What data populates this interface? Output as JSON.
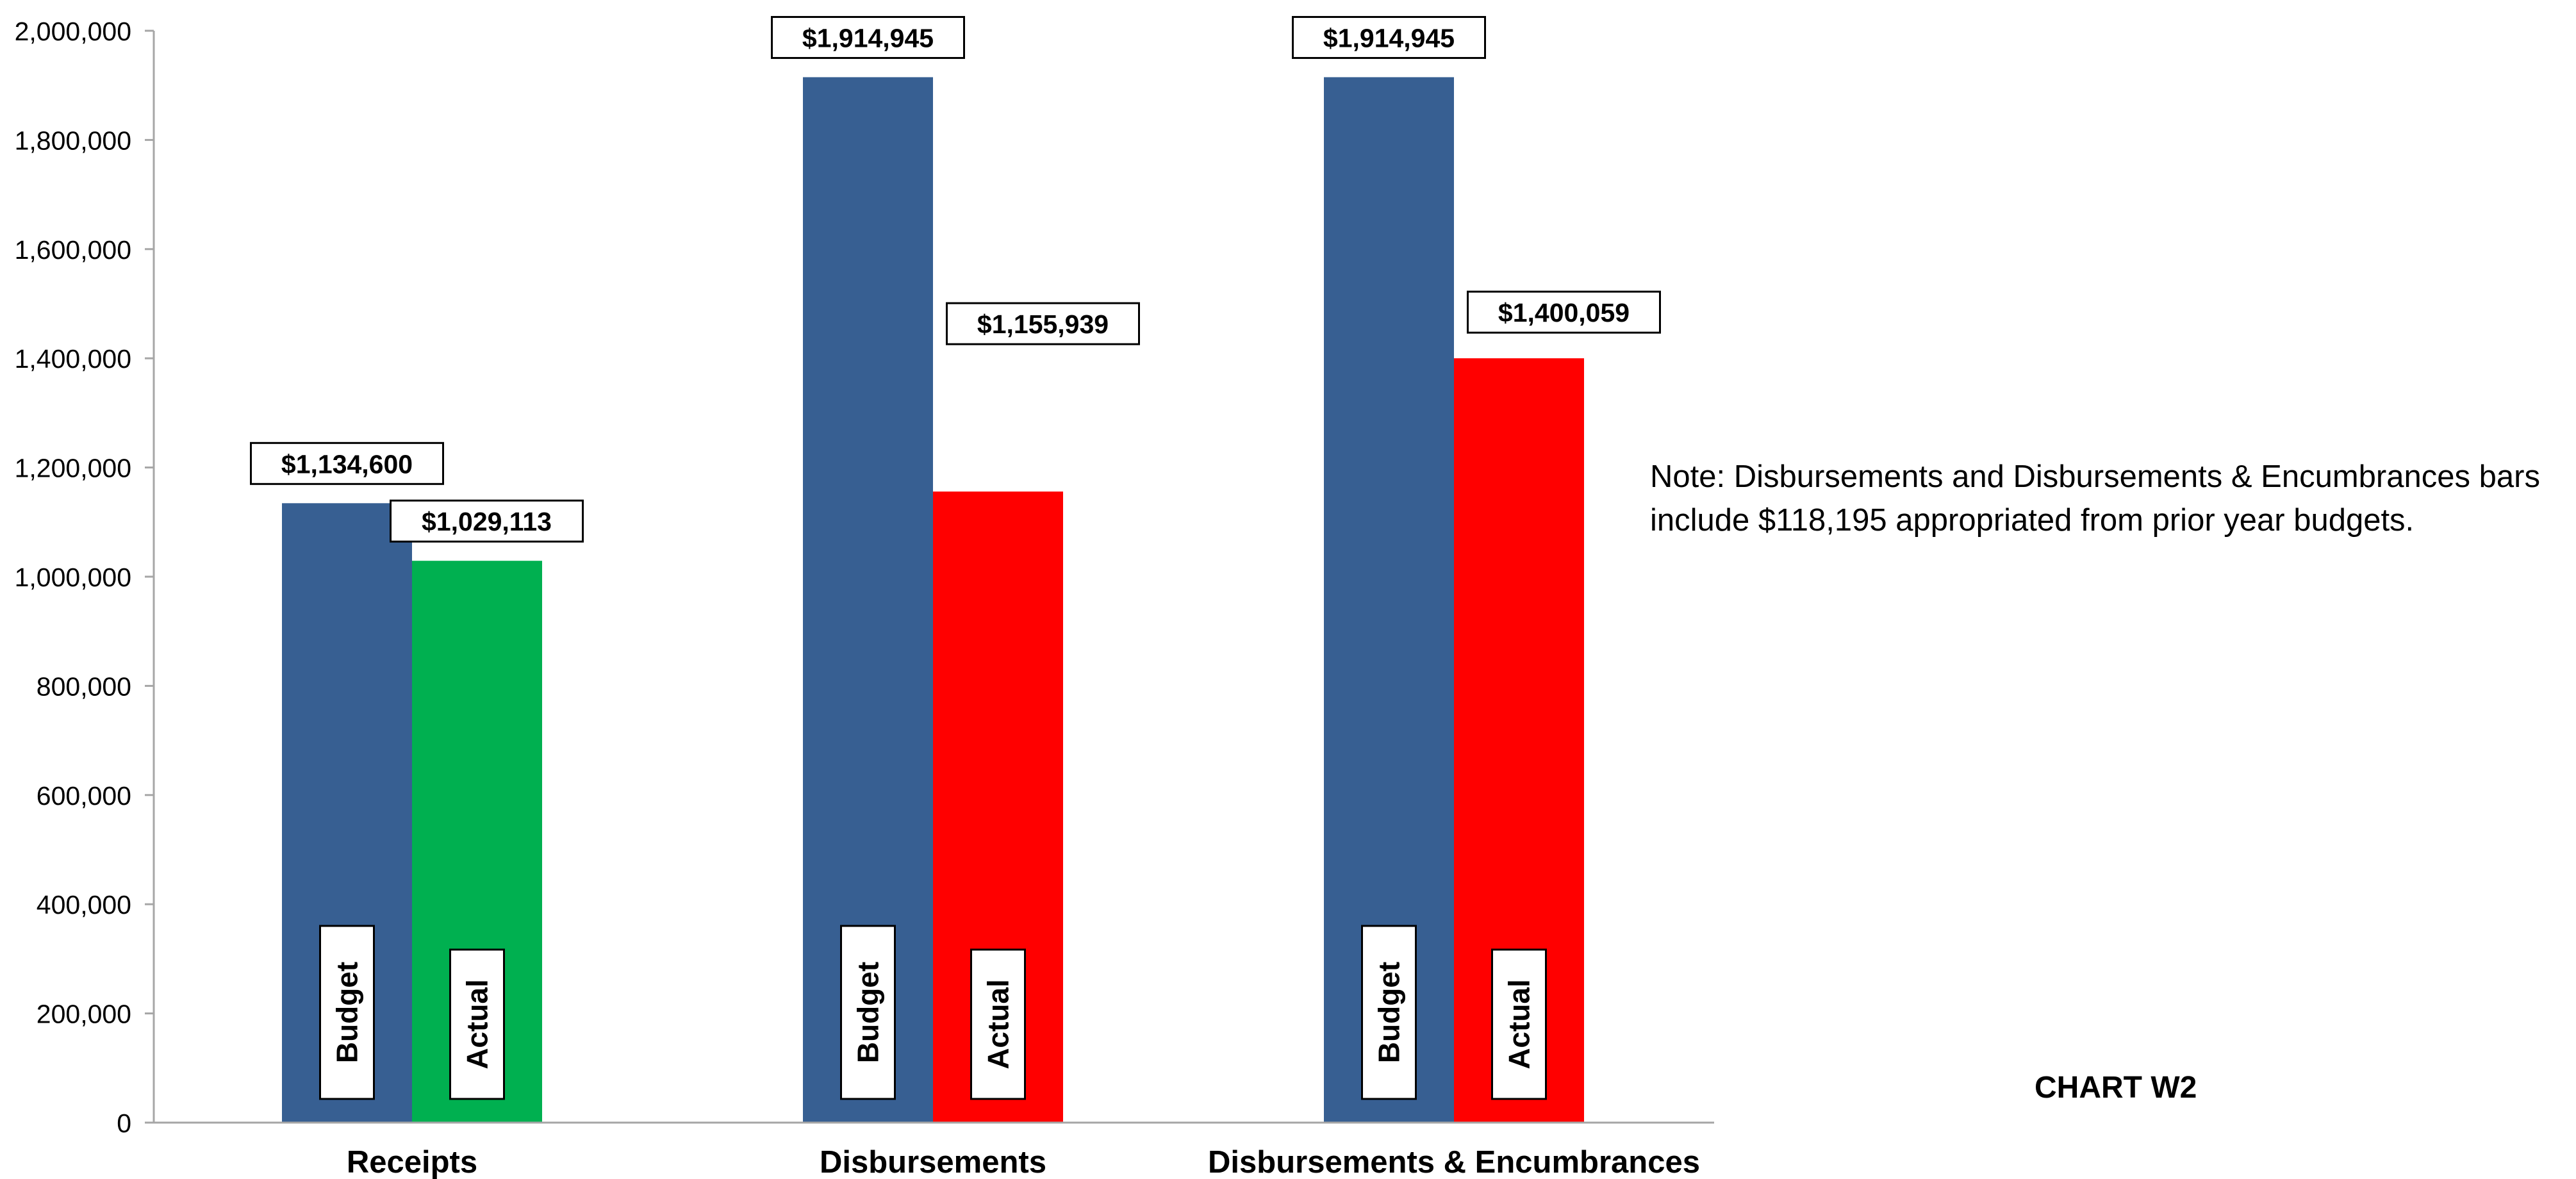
{
  "chart_data": {
    "type": "bar",
    "title": "",
    "xlabel": "",
    "ylabel": "",
    "ylim": [
      0,
      2000000
    ],
    "y_ticks": [
      "0",
      "200,000",
      "400,000",
      "600,000",
      "800,000",
      "1,000,000",
      "1,200,000",
      "1,400,000",
      "1,600,000",
      "1,800,000",
      "2,000,000"
    ],
    "grid": false,
    "legend": "none",
    "categories": [
      "Receipts",
      "Disbursements",
      "Disbursements & Encumbrances"
    ],
    "series": [
      {
        "name": "Budget",
        "values": [
          1134600,
          1914945,
          1914945
        ],
        "value_labels": [
          "$1,134,600",
          "$1,914,945",
          "$1,914,945"
        ],
        "colors": [
          "#375F92",
          "#375F92",
          "#375F92"
        ]
      },
      {
        "name": "Actual",
        "values": [
          1029113,
          1155939,
          1400059
        ],
        "value_labels": [
          "$1,029,113",
          "$1,155,939",
          "$1,400,059"
        ],
        "colors": [
          "#00B050",
          "#FF0000",
          "#FF0000"
        ]
      }
    ],
    "note_lines": [
      "Note:  Disbursements and Disbursements & Encumbrances bars",
      "include $118,195 appropriated from prior year budgets."
    ],
    "chart_id": "CHART W2"
  }
}
